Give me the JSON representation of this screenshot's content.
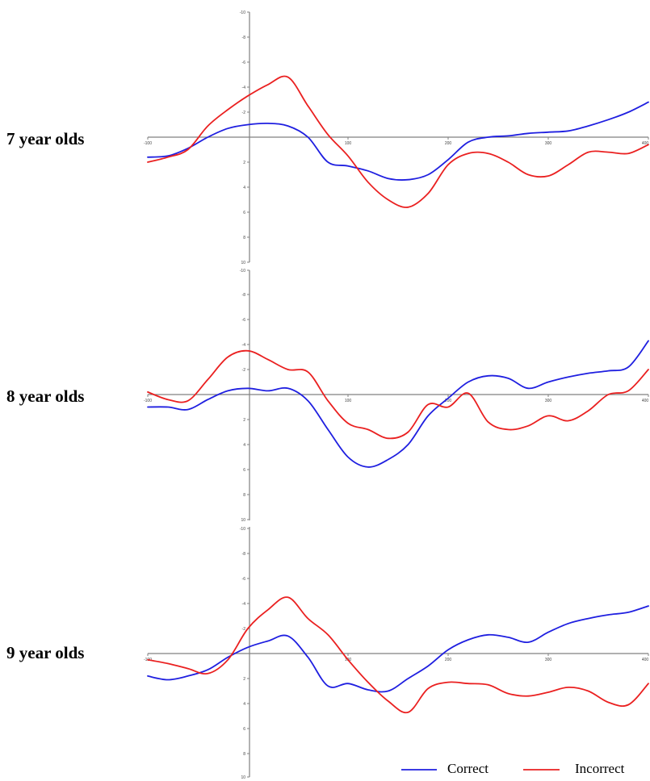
{
  "chart_data": [
    {
      "type": "line",
      "row_label": "7 year olds",
      "y_inverted": true,
      "xlim": [
        -100,
        400
      ],
      "ylim": [
        -10,
        10
      ],
      "x_ticks": [
        -100,
        100,
        200,
        300,
        400
      ],
      "y_ticks": [
        -10,
        -8,
        -6,
        -4,
        -2,
        2,
        4,
        6,
        8,
        10
      ],
      "series": [
        {
          "name": "Correct",
          "color": "#1f1fe0",
          "points": [
            [
              -100,
              1.6
            ],
            [
              -80,
              1.5
            ],
            [
              -60,
              0.9
            ],
            [
              -40,
              0.0
            ],
            [
              -20,
              -0.7
            ],
            [
              0,
              -1.0
            ],
            [
              20,
              -1.1
            ],
            [
              40,
              -0.9
            ],
            [
              60,
              0.0
            ],
            [
              80,
              2.0
            ],
            [
              100,
              2.3
            ],
            [
              120,
              2.7
            ],
            [
              140,
              3.3
            ],
            [
              160,
              3.4
            ],
            [
              180,
              3.0
            ],
            [
              200,
              1.8
            ],
            [
              220,
              0.4
            ],
            [
              240,
              0.0
            ],
            [
              260,
              -0.1
            ],
            [
              280,
              -0.3
            ],
            [
              300,
              -0.4
            ],
            [
              320,
              -0.5
            ],
            [
              340,
              -0.9
            ],
            [
              360,
              -1.4
            ],
            [
              380,
              -2.0
            ],
            [
              400,
              -2.8
            ]
          ]
        },
        {
          "name": "Incorrect",
          "color": "#ea2020",
          "points": [
            [
              -100,
              2.0
            ],
            [
              -80,
              1.6
            ],
            [
              -60,
              1.0
            ],
            [
              -40,
              -0.9
            ],
            [
              -20,
              -2.2
            ],
            [
              0,
              -3.3
            ],
            [
              20,
              -4.2
            ],
            [
              40,
              -4.8
            ],
            [
              60,
              -2.5
            ],
            [
              80,
              -0.2
            ],
            [
              100,
              1.5
            ],
            [
              120,
              3.6
            ],
            [
              140,
              5.0
            ],
            [
              160,
              5.6
            ],
            [
              180,
              4.5
            ],
            [
              200,
              2.2
            ],
            [
              220,
              1.3
            ],
            [
              240,
              1.3
            ],
            [
              260,
              2.0
            ],
            [
              280,
              3.0
            ],
            [
              300,
              3.1
            ],
            [
              320,
              2.2
            ],
            [
              340,
              1.2
            ],
            [
              360,
              1.2
            ],
            [
              380,
              1.3
            ],
            [
              400,
              0.6
            ]
          ]
        }
      ]
    },
    {
      "type": "line",
      "row_label": "8 year olds",
      "y_inverted": true,
      "xlim": [
        -100,
        400
      ],
      "ylim": [
        -10,
        10
      ],
      "x_ticks": [
        -100,
        100,
        200,
        300,
        400
      ],
      "y_ticks": [
        -10,
        -8,
        -6,
        -4,
        -2,
        2,
        4,
        6,
        8,
        10
      ],
      "series": [
        {
          "name": "Correct",
          "color": "#1f1fe0",
          "points": [
            [
              -100,
              1.0
            ],
            [
              -80,
              1.0
            ],
            [
              -60,
              1.2
            ],
            [
              -40,
              0.4
            ],
            [
              -20,
              -0.3
            ],
            [
              0,
              -0.5
            ],
            [
              20,
              -0.3
            ],
            [
              40,
              -0.5
            ],
            [
              60,
              0.5
            ],
            [
              80,
              2.8
            ],
            [
              100,
              5.0
            ],
            [
              120,
              5.8
            ],
            [
              140,
              5.2
            ],
            [
              160,
              4.0
            ],
            [
              180,
              1.7
            ],
            [
              200,
              0.3
            ],
            [
              220,
              -1.0
            ],
            [
              240,
              -1.5
            ],
            [
              260,
              -1.3
            ],
            [
              280,
              -0.5
            ],
            [
              300,
              -1.0
            ],
            [
              320,
              -1.4
            ],
            [
              340,
              -1.7
            ],
            [
              360,
              -1.9
            ],
            [
              380,
              -2.2
            ],
            [
              400,
              -4.3
            ]
          ]
        },
        {
          "name": "Incorrect",
          "color": "#ea2020",
          "points": [
            [
              -100,
              -0.2
            ],
            [
              -80,
              0.4
            ],
            [
              -60,
              0.5
            ],
            [
              -40,
              -1.2
            ],
            [
              -20,
              -3.0
            ],
            [
              0,
              -3.5
            ],
            [
              20,
              -2.8
            ],
            [
              40,
              -2.0
            ],
            [
              60,
              -1.8
            ],
            [
              80,
              0.5
            ],
            [
              100,
              2.3
            ],
            [
              120,
              2.8
            ],
            [
              140,
              3.5
            ],
            [
              160,
              3.0
            ],
            [
              180,
              0.8
            ],
            [
              200,
              1.0
            ],
            [
              220,
              -0.1
            ],
            [
              240,
              2.2
            ],
            [
              260,
              2.8
            ],
            [
              280,
              2.5
            ],
            [
              300,
              1.7
            ],
            [
              320,
              2.1
            ],
            [
              340,
              1.3
            ],
            [
              360,
              0.0
            ],
            [
              380,
              -0.3
            ],
            [
              400,
              -2.0
            ]
          ]
        }
      ]
    },
    {
      "type": "line",
      "row_label": "9 year olds",
      "y_inverted": true,
      "xlim": [
        -100,
        400
      ],
      "ylim": [
        -10,
        10
      ],
      "x_ticks": [
        -100,
        100,
        200,
        300,
        400
      ],
      "y_ticks": [
        -10,
        -8,
        -6,
        -4,
        -2,
        2,
        4,
        6,
        8,
        10
      ],
      "series": [
        {
          "name": "Correct",
          "color": "#1f1fe0",
          "points": [
            [
              -100,
              1.8
            ],
            [
              -80,
              2.1
            ],
            [
              -60,
              1.8
            ],
            [
              -40,
              1.3
            ],
            [
              -20,
              0.3
            ],
            [
              0,
              -0.5
            ],
            [
              20,
              -1.0
            ],
            [
              40,
              -1.4
            ],
            [
              60,
              0.3
            ],
            [
              80,
              2.6
            ],
            [
              100,
              2.4
            ],
            [
              120,
              2.9
            ],
            [
              140,
              3.0
            ],
            [
              160,
              2.0
            ],
            [
              180,
              1.0
            ],
            [
              200,
              -0.3
            ],
            [
              220,
              -1.1
            ],
            [
              240,
              -1.5
            ],
            [
              260,
              -1.3
            ],
            [
              280,
              -0.9
            ],
            [
              300,
              -1.7
            ],
            [
              320,
              -2.4
            ],
            [
              340,
              -2.8
            ],
            [
              360,
              -3.1
            ],
            [
              380,
              -3.3
            ],
            [
              400,
              -3.8
            ]
          ]
        },
        {
          "name": "Incorrect",
          "color": "#ea2020",
          "points": [
            [
              -100,
              0.5
            ],
            [
              -80,
              0.8
            ],
            [
              -60,
              1.2
            ],
            [
              -40,
              1.6
            ],
            [
              -20,
              0.5
            ],
            [
              0,
              -2.0
            ],
            [
              20,
              -3.5
            ],
            [
              40,
              -4.5
            ],
            [
              60,
              -2.8
            ],
            [
              80,
              -1.5
            ],
            [
              100,
              0.5
            ],
            [
              120,
              2.3
            ],
            [
              140,
              3.8
            ],
            [
              160,
              4.7
            ],
            [
              180,
              2.8
            ],
            [
              200,
              2.3
            ],
            [
              220,
              2.4
            ],
            [
              240,
              2.5
            ],
            [
              260,
              3.2
            ],
            [
              280,
              3.4
            ],
            [
              300,
              3.1
            ],
            [
              320,
              2.7
            ],
            [
              340,
              3.0
            ],
            [
              360,
              3.9
            ],
            [
              380,
              4.1
            ],
            [
              400,
              2.4
            ]
          ]
        }
      ]
    }
  ],
  "legend": {
    "placement": "bottom-right",
    "items": [
      {
        "label": "Correct",
        "color": "#1f1fe0"
      },
      {
        "label": "Incorrect",
        "color": "#ea2020"
      }
    ]
  }
}
